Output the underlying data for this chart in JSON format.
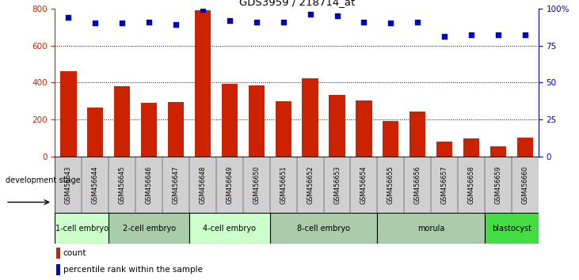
{
  "title": "GDS3959 / 218714_at",
  "samples": [
    "GSM456643",
    "GSM456644",
    "GSM456645",
    "GSM456646",
    "GSM456647",
    "GSM456648",
    "GSM456649",
    "GSM456650",
    "GSM456651",
    "GSM456652",
    "GSM456653",
    "GSM456654",
    "GSM456655",
    "GSM456656",
    "GSM456657",
    "GSM456658",
    "GSM456659",
    "GSM456660"
  ],
  "counts": [
    460,
    265,
    380,
    290,
    295,
    790,
    395,
    385,
    300,
    425,
    335,
    305,
    195,
    245,
    80,
    100,
    55,
    105
  ],
  "percentiles": [
    94,
    90,
    90,
    91,
    89,
    99,
    92,
    91,
    91,
    96,
    95,
    91,
    90,
    91,
    81,
    82,
    82,
    82
  ],
  "bar_color": "#cc2200",
  "dot_color": "#0000cc",
  "ylim_left": [
    0,
    800
  ],
  "ylim_right": [
    0,
    100
  ],
  "yticks_left": [
    0,
    200,
    400,
    600,
    800
  ],
  "yticks_right": [
    0,
    25,
    50,
    75,
    100
  ],
  "ytick_labels_right": [
    "0",
    "25",
    "50",
    "75",
    "100%"
  ],
  "stage_groups": [
    {
      "label": "1-cell embryo",
      "indices": [
        0,
        1
      ],
      "color": "#ccffcc"
    },
    {
      "label": "2-cell embryo",
      "indices": [
        2,
        3,
        4
      ],
      "color": "#aaccaa"
    },
    {
      "label": "4-cell embryo",
      "indices": [
        5,
        6,
        7
      ],
      "color": "#ccffcc"
    },
    {
      "label": "8-cell embryo",
      "indices": [
        8,
        9,
        10,
        11
      ],
      "color": "#aaccaa"
    },
    {
      "label": "morula",
      "indices": [
        12,
        13,
        14,
        15
      ],
      "color": "#aaccaa"
    },
    {
      "label": "blastocyst",
      "indices": [
        16,
        17
      ],
      "color": "#44dd44"
    }
  ],
  "tick_bg_color": "#d0d0d0",
  "legend_count_label": "count",
  "legend_pct_label": "percentile rank within the sample",
  "dev_stage_label": "development stage"
}
